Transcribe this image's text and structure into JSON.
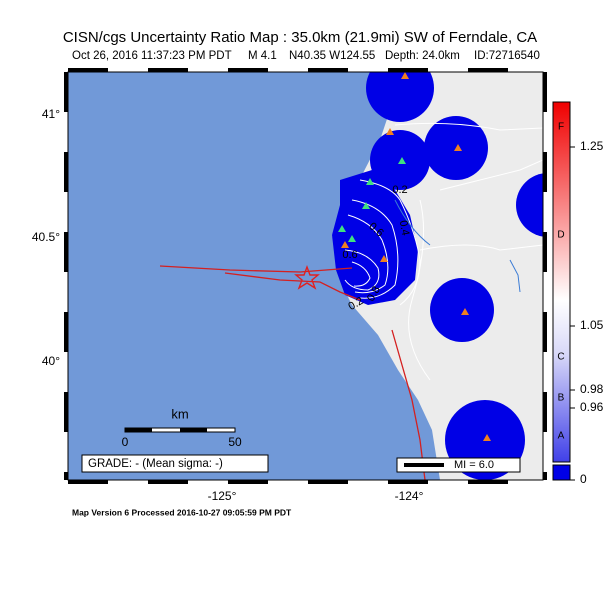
{
  "header": {
    "title": "CISN/cgs Uncertainty Ratio Map : 35.0km (21.9mi) SW of Ferndale, CA",
    "subtitle": [
      "Oct 26, 2016 11:37:23 PM PDT",
      "M 4.1",
      "N40.35 W124.55",
      "Depth: 24.0km",
      "ID:72716540"
    ]
  },
  "map": {
    "lat_labels": [
      "41°",
      "40.5°",
      "40°"
    ],
    "lon_labels": [
      "-125°",
      "-124°"
    ],
    "contour_labels": [
      "0.2",
      "0.4",
      "0.6",
      "0.6",
      "0.8",
      "0.2"
    ],
    "scale": {
      "unit": "km",
      "labels": [
        "0",
        "50"
      ]
    },
    "grade": "GRADE: - (Mean sigma: -)",
    "mi_legend": "MI = 6.0"
  },
  "colorbar": {
    "grades": [
      "F",
      "D",
      "C",
      "B",
      "A"
    ],
    "labels": [
      "1.25",
      "1.05",
      "0.98",
      "0.96",
      "0"
    ]
  },
  "footer": "Map Version 6 Processed 2016-10-27 09:05:59 PM PDT"
}
